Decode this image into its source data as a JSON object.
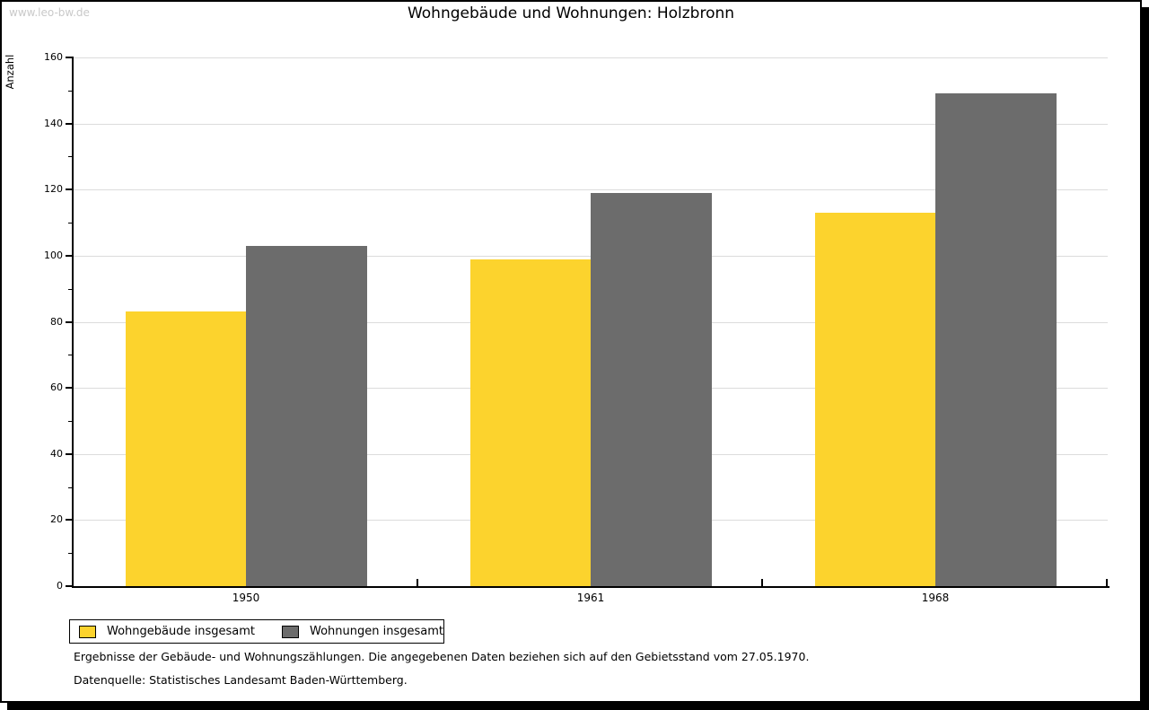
{
  "watermark": "www.leo-bw.de",
  "chart_data": {
    "type": "bar",
    "title": "Wohngebäude und Wohnungen: Holzbronn",
    "categories": [
      "1950",
      "1961",
      "1968"
    ],
    "series": [
      {
        "name": "Wohngebäude insgesamt",
        "color": "#FCD32D",
        "values": [
          83,
          99,
          113
        ]
      },
      {
        "name": "Wohnungen insgesamt",
        "color": "#6C6C6C",
        "values": [
          103,
          119,
          149
        ]
      }
    ],
    "xlabel": "",
    "ylabel": "Anzahl",
    "ylim": [
      0,
      160
    ],
    "ytick_step": 20,
    "yminor_step": 10,
    "grid": true,
    "legend_position": "bottom-left"
  },
  "footnotes": [
    "Ergebnisse der Gebäude- und Wohnungszählungen. Die angegebenen Daten beziehen sich auf den Gebietsstand vom 27.05.1970.",
    "Datenquelle: Statistisches Landesamt Baden-Württemberg."
  ],
  "colors": {
    "bar_yellow": "#FCD32D",
    "bar_gray": "#6C6C6C",
    "gridline": "#DCDCDC",
    "axis": "#000000",
    "watermark_gray": "#C9C9C9"
  }
}
